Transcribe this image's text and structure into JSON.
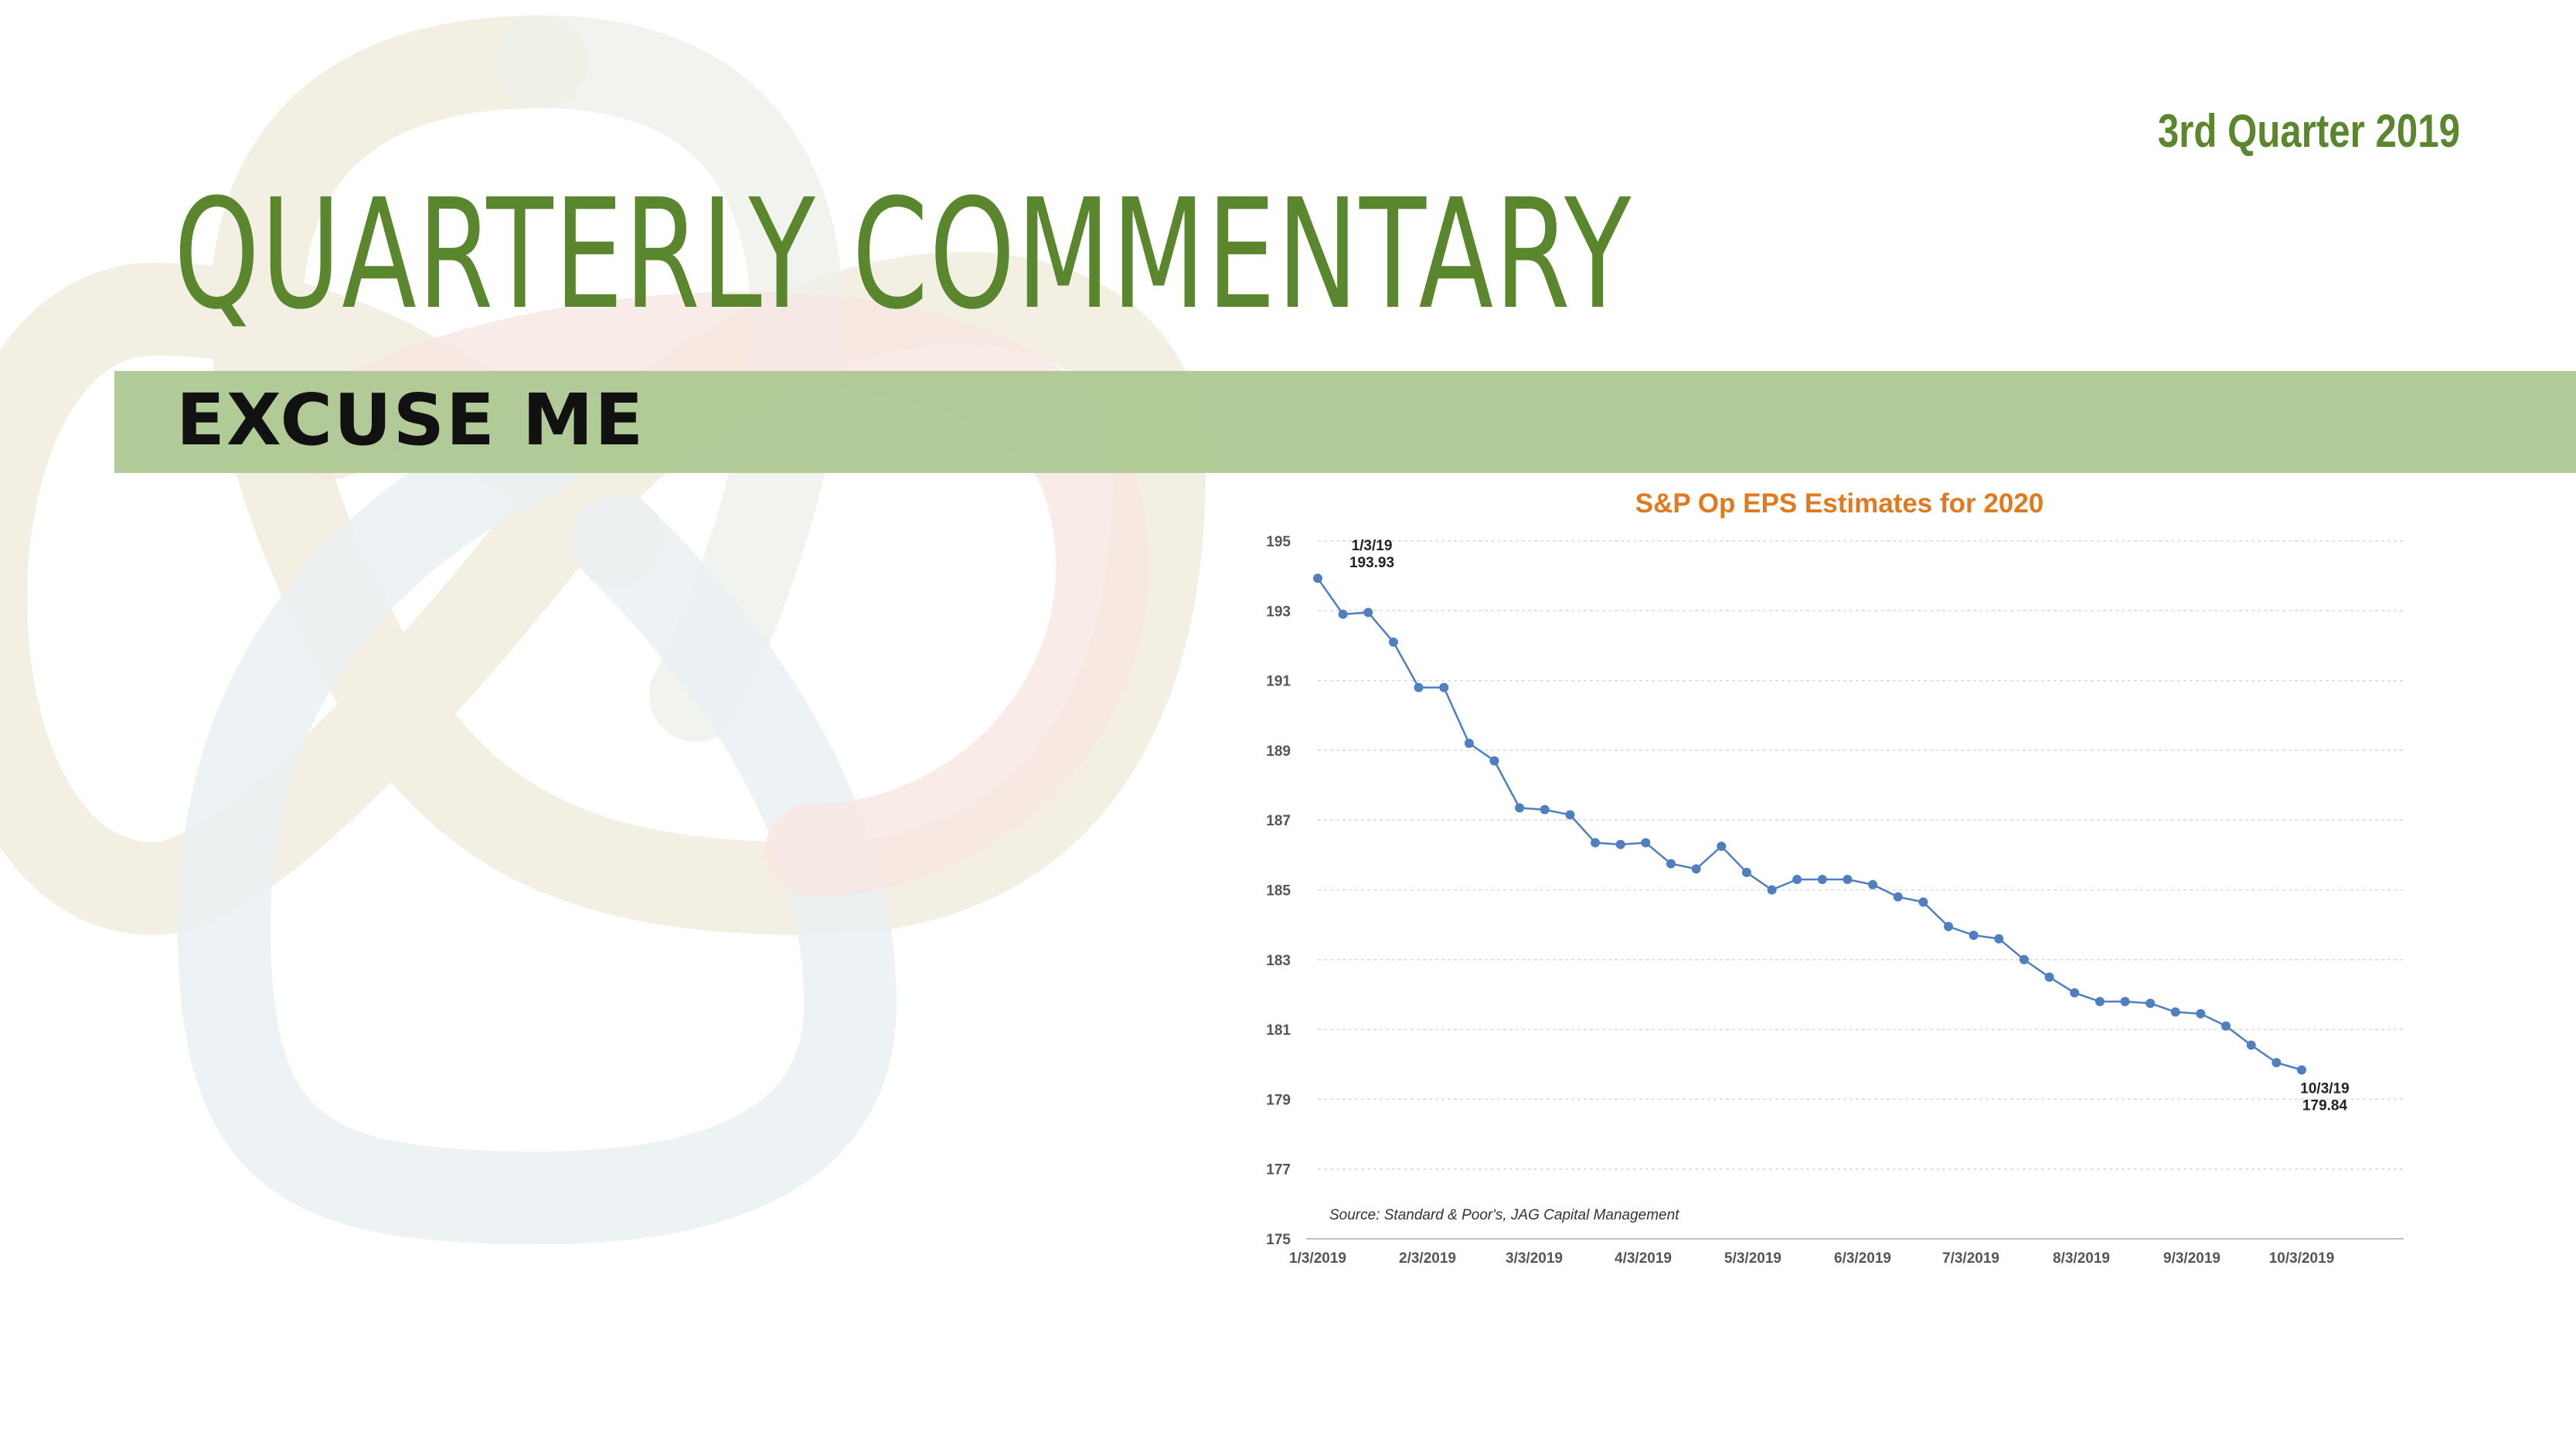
{
  "header": {
    "quarter": "3rd Quarter 2019",
    "title": "QUARTERLY COMMENTARY",
    "subtitle": "EXCUSE ME"
  },
  "colors": {
    "brand_green": "#5a862e",
    "band_green": "#aac78e",
    "chart_title": "#e07a1f",
    "series_line": "#4f7fc0"
  },
  "chart_data": {
    "type": "line",
    "title": "S&P Op EPS Estimates for 2020",
    "xlabel": "",
    "ylabel": "",
    "ylim": [
      175,
      195
    ],
    "yticks": [
      175,
      177,
      179,
      181,
      183,
      185,
      187,
      189,
      191,
      193,
      195
    ],
    "xticks": [
      "1/3/2019",
      "2/3/2019",
      "3/3/2019",
      "4/3/2019",
      "5/3/2019",
      "6/3/2019",
      "7/3/2019",
      "8/3/2019",
      "9/3/2019",
      "10/3/2019"
    ],
    "grid": true,
    "source": "Source: Standard & Poor's, JAG Capital Management",
    "series": [
      {
        "values": [
          193.93,
          192.9,
          192.95,
          192.1,
          190.8,
          190.8,
          189.2,
          188.7,
          187.35,
          187.3,
          187.15,
          186.35,
          186.3,
          186.35,
          185.75,
          185.6,
          186.25,
          185.5,
          185.0,
          185.3,
          185.3,
          185.3,
          185.15,
          184.8,
          184.65,
          183.95,
          183.7,
          183.6,
          183.0,
          182.5,
          182.05,
          181.8,
          181.8,
          181.75,
          181.5,
          181.45,
          181.1,
          180.55,
          180.05,
          179.84
        ]
      }
    ],
    "annotations": [
      {
        "label": "1/3/19",
        "value": "193.93",
        "point_index": 0
      },
      {
        "label": "10/3/19",
        "value": "179.84",
        "point_index": 39
      }
    ]
  }
}
